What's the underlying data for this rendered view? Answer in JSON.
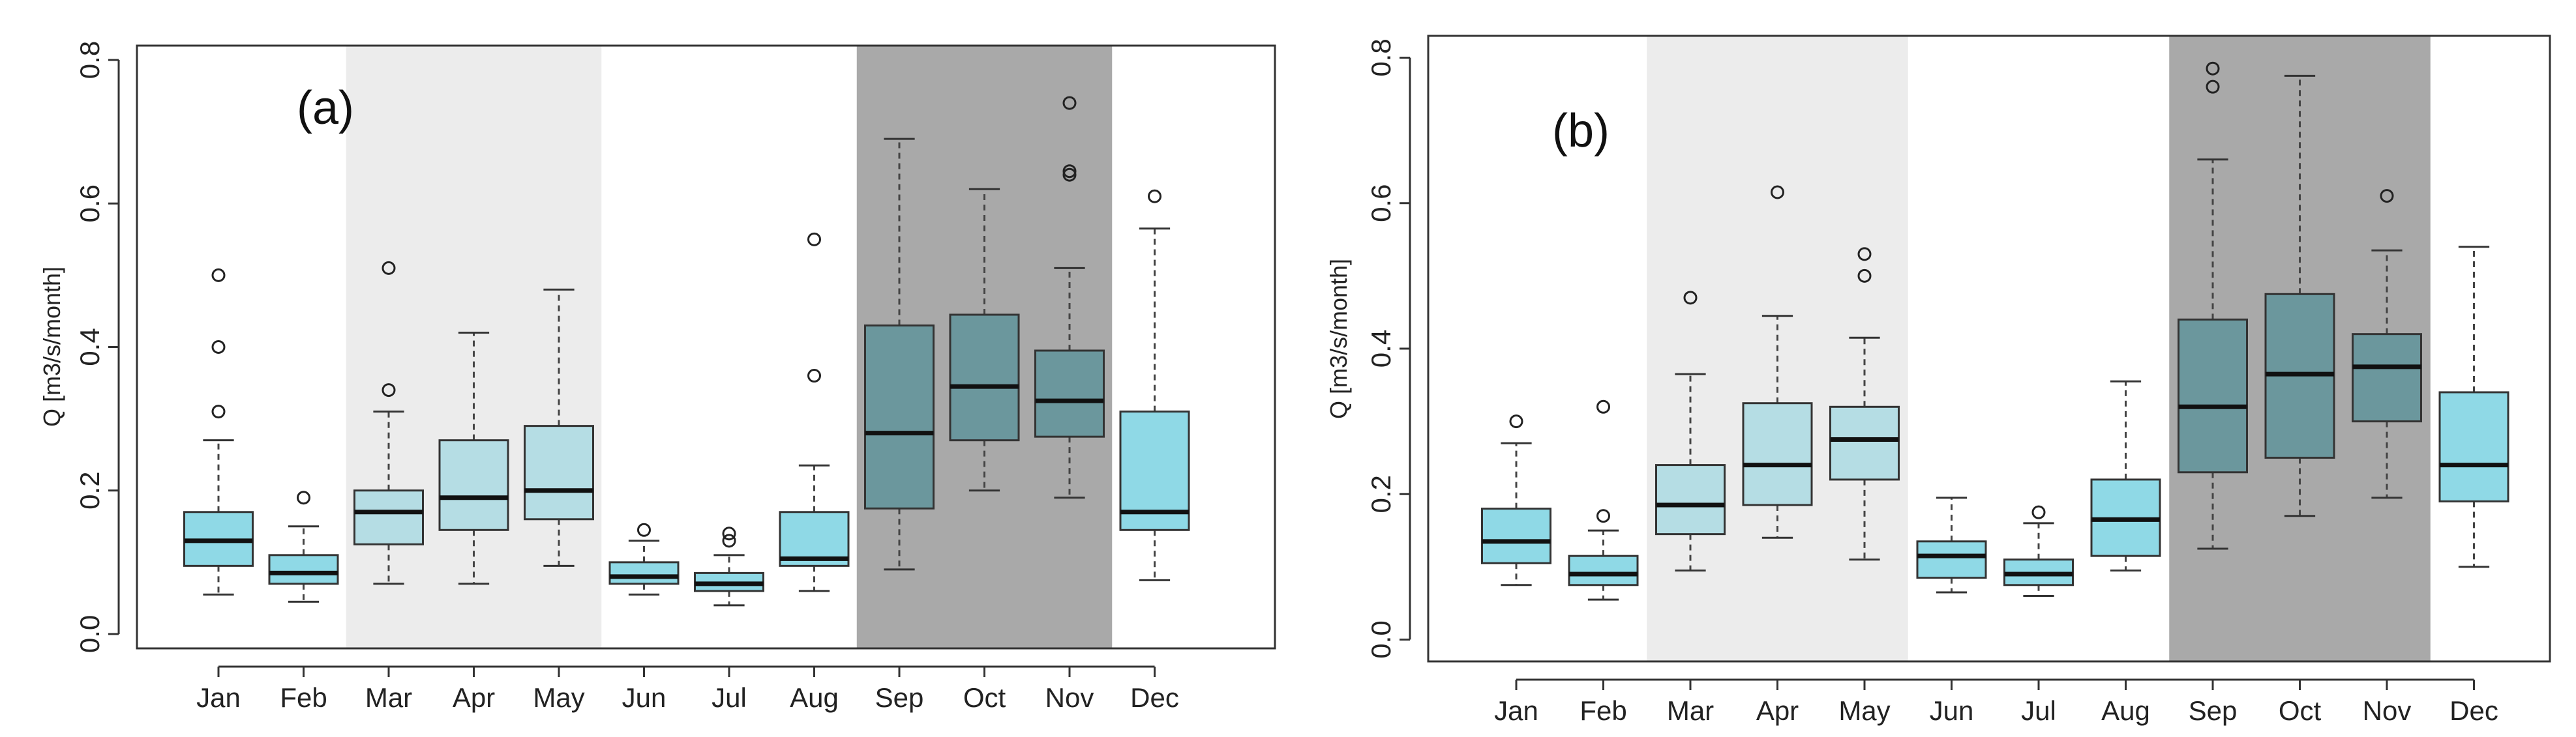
{
  "chart_data": [
    {
      "type": "boxplot",
      "panel_label": "(a)",
      "ylabel": "Q [m3/s/month]",
      "xlabel": "",
      "ylim": [
        -0.02,
        0.82
      ],
      "yticks": [
        "0.0",
        "0.2",
        "0.4",
        "0.6",
        "0.8"
      ],
      "grid": false,
      "categories": [
        "Jan",
        "Feb",
        "Mar",
        "Apr",
        "May",
        "Jun",
        "Jul",
        "Aug",
        "Sep",
        "Oct",
        "Nov",
        "Dec"
      ],
      "shaded_regions": [
        {
          "from": "Mar",
          "to": "May",
          "color": "#ececec"
        },
        {
          "from": "Sep",
          "to": "Nov",
          "color": "#a9a9a9"
        }
      ],
      "boxes": [
        {
          "min": 0.055,
          "q1": 0.095,
          "median": 0.13,
          "q3": 0.17,
          "max": 0.27,
          "outliers": [
            0.31,
            0.4,
            0.5
          ],
          "fill": "#8fd9e6"
        },
        {
          "min": 0.045,
          "q1": 0.07,
          "median": 0.085,
          "q3": 0.11,
          "max": 0.15,
          "outliers": [
            0.19
          ],
          "fill": "#8fd9e6"
        },
        {
          "min": 0.07,
          "q1": 0.125,
          "median": 0.17,
          "q3": 0.2,
          "max": 0.31,
          "outliers": [
            0.34,
            0.51
          ],
          "fill": "#b5dde4"
        },
        {
          "min": 0.07,
          "q1": 0.145,
          "median": 0.19,
          "q3": 0.27,
          "max": 0.42,
          "outliers": [],
          "fill": "#b5dde4"
        },
        {
          "min": 0.095,
          "q1": 0.16,
          "median": 0.2,
          "q3": 0.29,
          "max": 0.48,
          "outliers": [],
          "fill": "#b5dde4"
        },
        {
          "min": 0.055,
          "q1": 0.07,
          "median": 0.08,
          "q3": 0.1,
          "max": 0.13,
          "outliers": [
            0.145
          ],
          "fill": "#8fd9e6"
        },
        {
          "min": 0.04,
          "q1": 0.06,
          "median": 0.07,
          "q3": 0.085,
          "max": 0.11,
          "outliers": [
            0.13,
            0.14
          ],
          "fill": "#8fd9e6"
        },
        {
          "min": 0.06,
          "q1": 0.095,
          "median": 0.105,
          "q3": 0.17,
          "max": 0.235,
          "outliers": [
            0.36,
            0.55
          ],
          "fill": "#8fd9e6"
        },
        {
          "min": 0.09,
          "q1": 0.175,
          "median": 0.28,
          "q3": 0.43,
          "max": 0.69,
          "outliers": [],
          "fill": "#6b979d"
        },
        {
          "min": 0.2,
          "q1": 0.27,
          "median": 0.345,
          "q3": 0.445,
          "max": 0.62,
          "outliers": [],
          "fill": "#6b979d"
        },
        {
          "min": 0.19,
          "q1": 0.275,
          "median": 0.325,
          "q3": 0.395,
          "max": 0.51,
          "outliers": [
            0.64,
            0.645,
            0.74
          ],
          "fill": "#6b979d"
        },
        {
          "min": 0.075,
          "q1": 0.145,
          "median": 0.17,
          "q3": 0.31,
          "max": 0.565,
          "outliers": [
            0.61
          ],
          "fill": "#8fd9e6"
        }
      ]
    },
    {
      "type": "boxplot",
      "panel_label": "(b)",
      "ylabel": "Q [m3/s/month]",
      "xlabel": "",
      "ylim": [
        -0.03,
        0.83
      ],
      "yticks": [
        "0.0",
        "0.2",
        "0.4",
        "0.6",
        "0.8"
      ],
      "grid": false,
      "categories": [
        "Jan",
        "Feb",
        "Mar",
        "Apr",
        "May",
        "Jun",
        "Jul",
        "Aug",
        "Sep",
        "Oct",
        "Nov",
        "Dec"
      ],
      "shaded_regions": [
        {
          "from": "Mar",
          "to": "May",
          "color": "#ececec"
        },
        {
          "from": "Sep",
          "to": "Nov",
          "color": "#a9a9a9"
        }
      ],
      "boxes": [
        {
          "min": 0.075,
          "q1": 0.105,
          "median": 0.135,
          "q3": 0.18,
          "max": 0.27,
          "outliers": [
            0.3
          ],
          "fill": "#8fd9e6"
        },
        {
          "min": 0.055,
          "q1": 0.075,
          "median": 0.09,
          "q3": 0.115,
          "max": 0.15,
          "outliers": [
            0.17,
            0.32
          ],
          "fill": "#8fd9e6"
        },
        {
          "min": 0.095,
          "q1": 0.145,
          "median": 0.185,
          "q3": 0.24,
          "max": 0.365,
          "outliers": [
            0.47
          ],
          "fill": "#b5dde4"
        },
        {
          "min": 0.14,
          "q1": 0.185,
          "median": 0.24,
          "q3": 0.325,
          "max": 0.445,
          "outliers": [
            0.615
          ],
          "fill": "#b5dde4"
        },
        {
          "min": 0.11,
          "q1": 0.22,
          "median": 0.275,
          "q3": 0.32,
          "max": 0.415,
          "outliers": [
            0.5,
            0.53
          ],
          "fill": "#b5dde4"
        },
        {
          "min": 0.065,
          "q1": 0.085,
          "median": 0.115,
          "q3": 0.135,
          "max": 0.195,
          "outliers": [],
          "fill": "#8fd9e6"
        },
        {
          "min": 0.06,
          "q1": 0.075,
          "median": 0.09,
          "q3": 0.11,
          "max": 0.16,
          "outliers": [
            0.175
          ],
          "fill": "#8fd9e6"
        },
        {
          "min": 0.095,
          "q1": 0.115,
          "median": 0.165,
          "q3": 0.22,
          "max": 0.355,
          "outliers": [],
          "fill": "#8fd9e6"
        },
        {
          "min": 0.125,
          "q1": 0.23,
          "median": 0.32,
          "q3": 0.44,
          "max": 0.66,
          "outliers": [
            0.76,
            0.785
          ],
          "fill": "#6b979d"
        },
        {
          "min": 0.17,
          "q1": 0.25,
          "median": 0.365,
          "q3": 0.475,
          "max": 0.775,
          "outliers": [],
          "fill": "#6b979d"
        },
        {
          "min": 0.195,
          "q1": 0.3,
          "median": 0.375,
          "q3": 0.42,
          "max": 0.535,
          "outliers": [
            0.61
          ],
          "fill": "#6b979d"
        },
        {
          "min": 0.1,
          "q1": 0.19,
          "median": 0.24,
          "q3": 0.34,
          "max": 0.54,
          "outliers": [],
          "fill": "#8fd9e6"
        }
      ]
    }
  ]
}
